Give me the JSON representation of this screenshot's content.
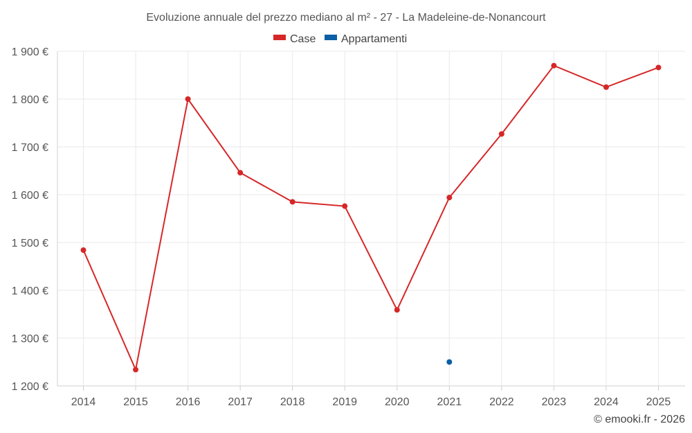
{
  "chart_data": {
    "type": "line",
    "title": "Evoluzione annuale del prezzo mediano al m² - 27 - La Madeleine-de-Nonancourt",
    "categories": [
      "2014",
      "2015",
      "2016",
      "2017",
      "2018",
      "2019",
      "2020",
      "2021",
      "2022",
      "2023",
      "2024",
      "2025"
    ],
    "series": [
      {
        "name": "Case",
        "color": "#d62728",
        "values": [
          1484,
          1234,
          1800,
          1646,
          1585,
          1576,
          1359,
          1594,
          1727,
          1870,
          1825,
          1866
        ]
      },
      {
        "name": "Appartamenti",
        "color": "#0b5fa5",
        "values": [
          null,
          null,
          null,
          null,
          null,
          null,
          null,
          1250,
          null,
          null,
          null,
          null
        ]
      }
    ],
    "ylim": [
      1200,
      1900
    ],
    "yticks": [
      1200,
      1300,
      1400,
      1500,
      1600,
      1700,
      1800,
      1900
    ],
    "ytick_labels": [
      "1 200 €",
      "1 300 €",
      "1 400 €",
      "1 500 €",
      "1 600 €",
      "1 700 €",
      "1 800 €",
      "1 900 €"
    ],
    "xlabel": "",
    "ylabel": "",
    "grid": true,
    "legend_position": "top-center"
  },
  "credit": "© emooki.fr - 2026"
}
